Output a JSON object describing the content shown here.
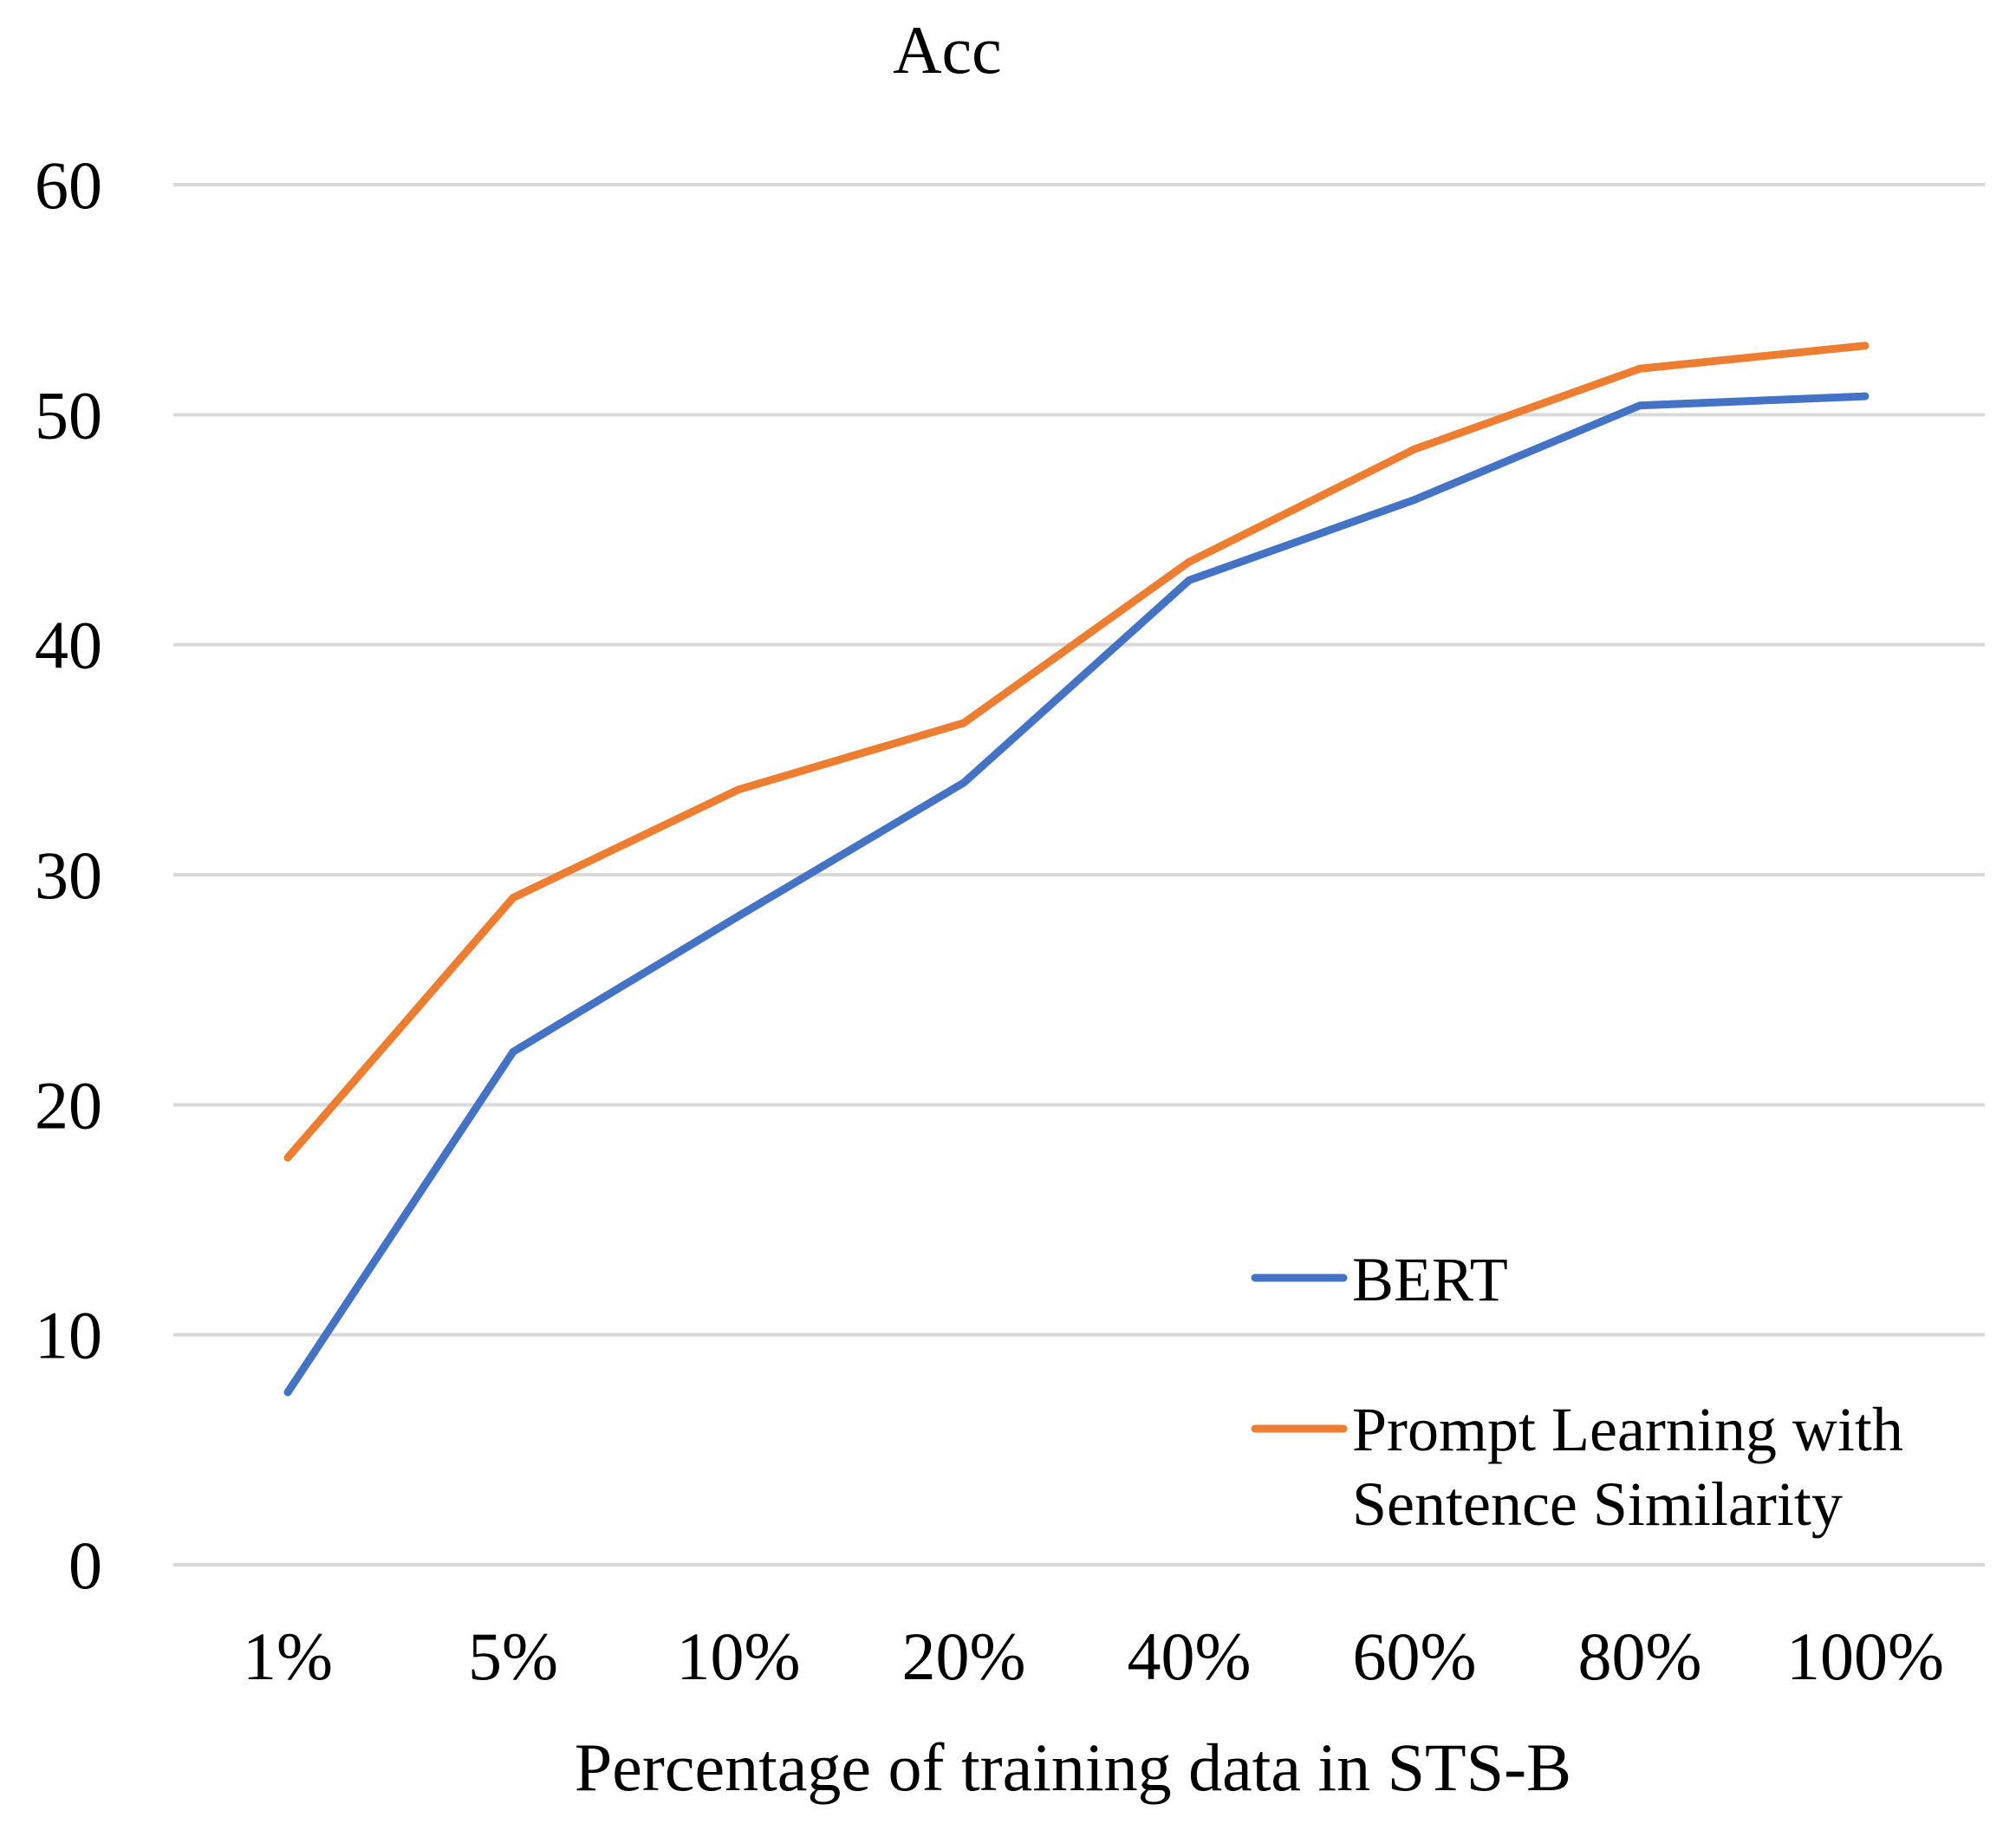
{
  "chart_data": {
    "type": "line",
    "title": "Acc",
    "xlabel": "Percentage of training data in STS-B",
    "ylabel": "",
    "categories": [
      "1%",
      "5%",
      "10%",
      "20%",
      "40%",
      "60%",
      "80%",
      "100%"
    ],
    "ylim": [
      0,
      60
    ],
    "yticks": [
      "0",
      "10",
      "20",
      "30",
      "40",
      "50",
      "60"
    ],
    "grid": true,
    "legend_position": "bottom-right",
    "series": [
      {
        "name": "BERT",
        "color": "#4472c4",
        "values": [
          7.5,
          22.3,
          28.2,
          34.0,
          42.8,
          46.3,
          50.4,
          50.8
        ]
      },
      {
        "name": "Prompt Learning with Sentence Similarity",
        "name_lines": [
          "Prompt Learning with",
          "Sentence Similarity"
        ],
        "color": "#ed7d31",
        "values": [
          17.7,
          29.0,
          33.7,
          36.6,
          43.6,
          48.5,
          52.0,
          53.0
        ]
      }
    ]
  }
}
